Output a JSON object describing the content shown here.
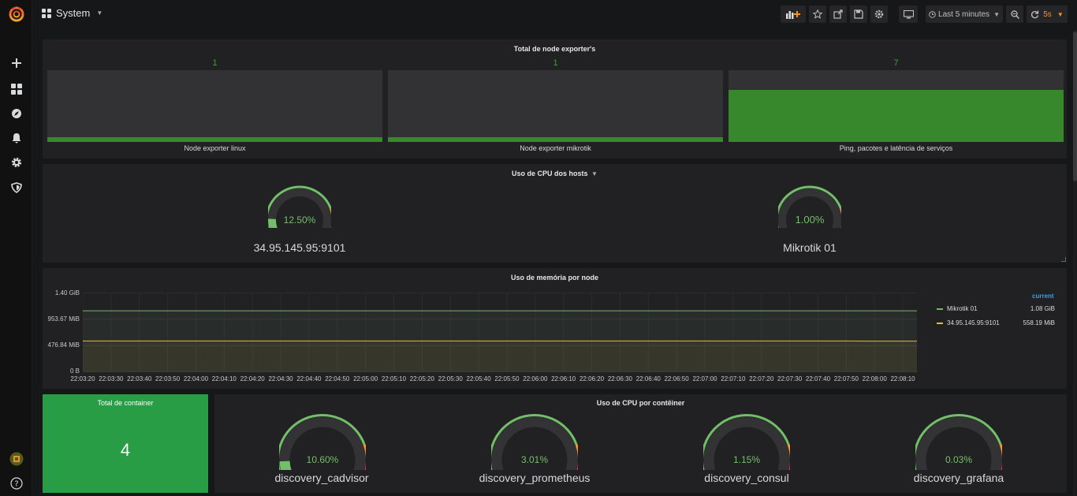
{
  "app": {
    "dashboard_title": "System",
    "time_range": "Last 5 minutes",
    "refresh_interval": "5s",
    "icons": [
      "grafana-logo-icon",
      "add-icon",
      "dashboards-icon",
      "explore-icon",
      "alerting-icon",
      "configuration-icon",
      "shield-icon",
      "avatar",
      "help-icon",
      "add-panel-icon",
      "star-icon",
      "share-icon",
      "save-icon",
      "settings-icon",
      "tv-mode-icon",
      "clock-icon",
      "zoom-out-icon",
      "refresh-icon"
    ]
  },
  "panels": {
    "node_exporters": {
      "title": "Total de node exporter's",
      "items": [
        {
          "value": "1",
          "label": "Node exporter linux",
          "fill": 0.07
        },
        {
          "value": "1",
          "label": "Node exporter mikrotik",
          "fill": 0.07
        },
        {
          "value": "7",
          "label": "Ping, pacotes e latência de serviços",
          "fill": 0.72
        }
      ]
    },
    "cpu_hosts": {
      "title": "Uso de CPU dos hosts",
      "gauges": [
        {
          "value": "12.50%",
          "percent": 12.5,
          "label": "34.95.145.95:9101"
        },
        {
          "value": "1.00%",
          "percent": 1.0,
          "label": "Mikrotik 01"
        }
      ]
    },
    "memory": {
      "title": "Uso de memória por node",
      "legend_header": "current",
      "series": [
        {
          "name": "Mikrotik 01",
          "current": "1.08 GiB",
          "color": "#7eb26d"
        },
        {
          "name": "34.95.145.95:9101",
          "current": "558.19 MiB",
          "color": "#eab839"
        }
      ]
    },
    "total_container": {
      "title": "Total de container",
      "value": "4",
      "color": "#299c46"
    },
    "cpu_containers": {
      "title": "Uso de CPU por contêiner",
      "gauges": [
        {
          "value": "10.60%",
          "percent": 10.6,
          "label": "discovery_cadvisor"
        },
        {
          "value": "3.01%",
          "percent": 3.01,
          "label": "discovery_prometheus"
        },
        {
          "value": "1.15%",
          "percent": 1.15,
          "label": "discovery_consul"
        },
        {
          "value": "0.03%",
          "percent": 0.03,
          "label": "discovery_grafana"
        }
      ]
    }
  },
  "chart_data": {
    "type": "line",
    "title": "Uso de memória por node",
    "x": [
      "22:03:20",
      "22:03:30",
      "22:03:40",
      "22:03:50",
      "22:04:00",
      "22:04:10",
      "22:04:20",
      "22:04:30",
      "22:04:40",
      "22:04:50",
      "22:05:00",
      "22:05:10",
      "22:05:20",
      "22:05:30",
      "22:05:40",
      "22:05:50",
      "22:06:00",
      "22:06:10",
      "22:06:20",
      "22:06:30",
      "22:06:40",
      "22:06:50",
      "22:07:00",
      "22:07:10",
      "22:07:20",
      "22:07:30",
      "22:07:40",
      "22:07:50",
      "22:08:00",
      "22:08:10"
    ],
    "y_ticks": [
      "1.40 GiB",
      "953.67 MiB",
      "476.84 MiB",
      "0 B"
    ],
    "ylim": [
      0,
      1.4
    ],
    "yunit": "GiB",
    "grid": true,
    "legend": "right",
    "series": [
      {
        "name": "Mikrotik 01",
        "color": "#7eb26d",
        "values": [
          1.08,
          1.08,
          1.08,
          1.08,
          1.08,
          1.08,
          1.08,
          1.08,
          1.08,
          1.08,
          1.08,
          1.08,
          1.08,
          1.08,
          1.08,
          1.08,
          1.08,
          1.08,
          1.08,
          1.08,
          1.08,
          1.08,
          1.08,
          1.08,
          1.08,
          1.08,
          1.08,
          1.08,
          1.08,
          1.08
        ]
      },
      {
        "name": "34.95.145.95:9101",
        "color": "#eab839",
        "values": [
          0.55,
          0.55,
          0.55,
          0.55,
          0.55,
          0.55,
          0.55,
          0.55,
          0.55,
          0.55,
          0.55,
          0.55,
          0.55,
          0.55,
          0.55,
          0.55,
          0.55,
          0.55,
          0.55,
          0.55,
          0.55,
          0.55,
          0.55,
          0.55,
          0.55,
          0.55,
          0.55,
          0.55,
          0.545,
          0.545
        ]
      }
    ]
  }
}
